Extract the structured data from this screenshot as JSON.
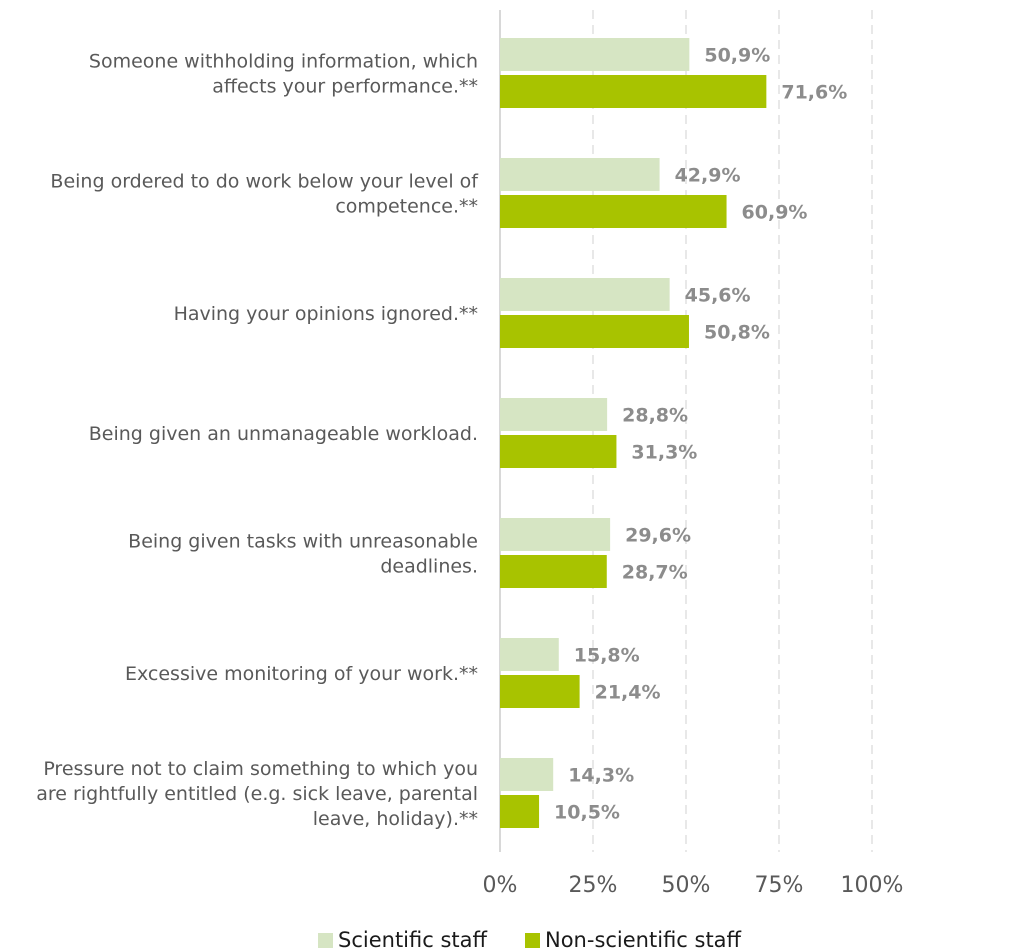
{
  "chart_data": {
    "type": "bar",
    "orientation": "horizontal",
    "categories": [
      [
        "Someone withholding information, which",
        "affects your performance.**"
      ],
      [
        "Being ordered to do work below your level of",
        "competence.**"
      ],
      [
        "Having your opinions ignored.**"
      ],
      [
        "Being given an unmanageable workload."
      ],
      [
        "Being given tasks with unreasonable",
        "deadlines."
      ],
      [
        "Excessive monitoring of your work.**"
      ],
      [
        "Pressure not to claim something to which you",
        "are rightfully entitled (e.g. sick leave, parental",
        "leave, holiday).**"
      ]
    ],
    "series": [
      {
        "name": "Scientific staff",
        "color": "#d6e5c3",
        "values": [
          50.9,
          42.9,
          45.6,
          28.8,
          29.6,
          15.8,
          14.3
        ],
        "labels": [
          "50,9%",
          "42,9%",
          "45,6%",
          "28,8%",
          "29,6%",
          "15,8%",
          "14,3%"
        ]
      },
      {
        "name": "Non-scientific staff",
        "color": "#a8c300",
        "values": [
          71.6,
          60.9,
          50.8,
          31.3,
          28.7,
          21.4,
          10.5
        ],
        "labels": [
          "71,6%",
          "60,9%",
          "50,8%",
          "31,3%",
          "28,7%",
          "21,4%",
          "10,5%"
        ]
      }
    ],
    "xlim": [
      0,
      100
    ],
    "xticks": [
      0,
      25,
      50,
      75,
      100
    ],
    "xtick_labels": [
      "0%",
      "25%",
      "50%",
      "75%",
      "100%"
    ],
    "grid": true,
    "legend_position": "bottom"
  }
}
